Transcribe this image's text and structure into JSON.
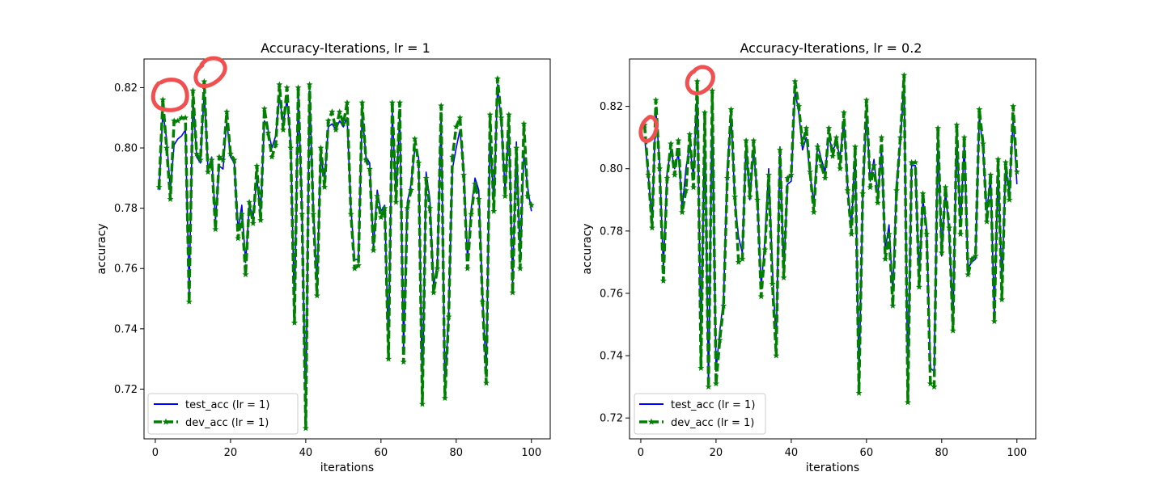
{
  "figure": {
    "background": "#ffffff"
  },
  "chart_data": [
    {
      "type": "line",
      "title": "Accuracy-Iterations, lr = 1",
      "xlabel": "iterations",
      "ylabel": "accuracy",
      "xlim": [
        -3,
        105
      ],
      "ylim": [
        0.7035,
        0.8295
      ],
      "xticks": [
        0,
        20,
        40,
        60,
        80,
        100
      ],
      "xtick_labels": [
        "0",
        "20",
        "40",
        "60",
        "80",
        "100"
      ],
      "yticks": [
        0.72,
        0.74,
        0.76,
        0.78,
        0.8,
        0.82
      ],
      "ytick_labels": [
        "0.72",
        "0.74",
        "0.76",
        "0.78",
        "0.80",
        "0.82"
      ],
      "grid": false,
      "legend_position": "lower left",
      "series": [
        {
          "name": "test_acc (lr = 1)",
          "color": "#0000ff",
          "style": "solid",
          "marker": "none",
          "x": [
            1,
            2,
            3,
            4,
            5,
            6,
            7,
            8,
            9,
            10,
            11,
            12,
            13,
            14,
            15,
            16,
            17,
            18,
            19,
            20,
            21,
            22,
            23,
            24,
            25,
            26,
            27,
            28,
            29,
            30,
            31,
            32,
            33,
            34,
            35,
            36,
            37,
            38,
            39,
            40,
            41,
            42,
            43,
            44,
            45,
            46,
            47,
            48,
            49,
            50,
            51,
            52,
            53,
            54,
            55,
            56,
            57,
            58,
            59,
            60,
            61,
            62,
            63,
            64,
            65,
            66,
            67,
            68,
            69,
            70,
            71,
            72,
            73,
            74,
            75,
            76,
            77,
            78,
            79,
            80,
            81,
            82,
            83,
            84,
            85,
            86,
            87,
            88,
            89,
            90,
            91,
            92,
            93,
            94,
            95,
            96,
            97,
            98,
            99,
            100
          ],
          "values": [
            0.786,
            0.812,
            0.803,
            0.786,
            0.801,
            0.803,
            0.804,
            0.806,
            0.752,
            0.817,
            0.797,
            0.795,
            0.819,
            0.793,
            0.797,
            0.776,
            0.794,
            0.793,
            0.809,
            0.797,
            0.795,
            0.773,
            0.781,
            0.762,
            0.781,
            0.777,
            0.79,
            0.778,
            0.809,
            0.806,
            0.8,
            0.804,
            0.817,
            0.808,
            0.816,
            0.802,
            0.745,
            0.818,
            0.78,
            0.712,
            0.819,
            0.781,
            0.754,
            0.798,
            0.789,
            0.807,
            0.808,
            0.806,
            0.809,
            0.807,
            0.81,
            0.78,
            0.763,
            0.763,
            0.812,
            0.797,
            0.795,
            0.767,
            0.786,
            0.779,
            0.781,
            0.733,
            0.812,
            0.784,
            0.811,
            0.733,
            0.782,
            0.788,
            0.8,
            0.797,
            0.717,
            0.792,
            0.783,
            0.754,
            0.762,
            0.811,
            0.72,
            0.745,
            0.793,
            0.8,
            0.806,
            0.793,
            0.763,
            0.78,
            0.79,
            0.786,
            0.751,
            0.725,
            0.805,
            0.781,
            0.821,
            0.808,
            0.786,
            0.807,
            0.755,
            0.802,
            0.763,
            0.798,
            0.787,
            0.779
          ]
        },
        {
          "name": "dev_acc (lr = 1)",
          "color": "#008000",
          "style": "dashed",
          "marker": "star",
          "x": [
            1,
            2,
            3,
            4,
            5,
            6,
            7,
            8,
            9,
            10,
            11,
            12,
            13,
            14,
            15,
            16,
            17,
            18,
            19,
            20,
            21,
            22,
            23,
            24,
            25,
            26,
            27,
            28,
            29,
            30,
            31,
            32,
            33,
            34,
            35,
            36,
            37,
            38,
            39,
            40,
            41,
            42,
            43,
            44,
            45,
            46,
            47,
            48,
            49,
            50,
            51,
            52,
            53,
            54,
            55,
            56,
            57,
            58,
            59,
            60,
            61,
            62,
            63,
            64,
            65,
            66,
            67,
            68,
            69,
            70,
            71,
            72,
            73,
            74,
            75,
            76,
            77,
            78,
            79,
            80,
            81,
            82,
            83,
            84,
            85,
            86,
            87,
            88,
            89,
            90,
            91,
            92,
            93,
            94,
            95,
            96,
            97,
            98,
            99,
            100
          ],
          "values": [
            0.787,
            0.816,
            0.8,
            0.783,
            0.809,
            0.809,
            0.81,
            0.81,
            0.749,
            0.819,
            0.798,
            0.796,
            0.822,
            0.792,
            0.796,
            0.773,
            0.797,
            0.796,
            0.812,
            0.798,
            0.796,
            0.77,
            0.778,
            0.758,
            0.782,
            0.775,
            0.794,
            0.776,
            0.813,
            0.805,
            0.797,
            0.801,
            0.821,
            0.806,
            0.82,
            0.8,
            0.742,
            0.82,
            0.778,
            0.707,
            0.821,
            0.778,
            0.751,
            0.8,
            0.787,
            0.809,
            0.812,
            0.806,
            0.812,
            0.808,
            0.815,
            0.778,
            0.76,
            0.761,
            0.815,
            0.796,
            0.793,
            0.766,
            0.784,
            0.777,
            0.78,
            0.73,
            0.815,
            0.782,
            0.815,
            0.729,
            0.78,
            0.786,
            0.803,
            0.795,
            0.715,
            0.79,
            0.78,
            0.752,
            0.76,
            0.814,
            0.717,
            0.744,
            0.797,
            0.807,
            0.81,
            0.791,
            0.76,
            0.778,
            0.788,
            0.783,
            0.749,
            0.722,
            0.811,
            0.779,
            0.823,
            0.81,
            0.784,
            0.811,
            0.752,
            0.8,
            0.76,
            0.808,
            0.784,
            0.781
          ]
        }
      ]
    },
    {
      "type": "line",
      "title": "Accuracy-Iterations, lr = 0.2",
      "xlabel": "iterations",
      "ylabel": "accuracy",
      "xlim": [
        -3,
        105
      ],
      "ylim": [
        0.7133,
        0.8352
      ],
      "xticks": [
        0,
        20,
        40,
        60,
        80,
        100
      ],
      "xtick_labels": [
        "0",
        "20",
        "40",
        "60",
        "80",
        "100"
      ],
      "yticks": [
        0.72,
        0.74,
        0.76,
        0.78,
        0.8,
        0.82
      ],
      "ytick_labels": [
        "0.72",
        "0.74",
        "0.76",
        "0.78",
        "0.80",
        "0.82"
      ],
      "grid": false,
      "legend_position": "lower left",
      "series": [
        {
          "name": "test_acc (lr = 1)",
          "color": "#0000ff",
          "style": "solid",
          "marker": "none",
          "x": [
            1,
            2,
            3,
            4,
            5,
            6,
            7,
            8,
            9,
            10,
            11,
            12,
            13,
            14,
            15,
            16,
            17,
            18,
            19,
            20,
            21,
            22,
            23,
            24,
            25,
            26,
            27,
            28,
            29,
            30,
            31,
            32,
            33,
            34,
            35,
            36,
            37,
            38,
            39,
            40,
            41,
            42,
            43,
            44,
            45,
            46,
            47,
            48,
            49,
            50,
            51,
            52,
            53,
            54,
            55,
            56,
            57,
            58,
            59,
            60,
            61,
            62,
            63,
            64,
            65,
            66,
            67,
            68,
            69,
            70,
            71,
            72,
            73,
            74,
            75,
            76,
            77,
            78,
            79,
            80,
            81,
            82,
            83,
            84,
            85,
            86,
            87,
            88,
            89,
            90,
            91,
            92,
            93,
            94,
            95,
            96,
            97,
            98,
            99,
            100
          ],
          "values": [
            0.81,
            0.798,
            0.783,
            0.819,
            0.802,
            0.768,
            0.799,
            0.806,
            0.8,
            0.805,
            0.787,
            0.8,
            0.808,
            0.797,
            0.826,
            0.742,
            0.815,
            0.73,
            0.821,
            0.735,
            0.748,
            0.758,
            0.8,
            0.817,
            0.79,
            0.778,
            0.773,
            0.808,
            0.79,
            0.806,
            0.791,
            0.762,
            0.777,
            0.8,
            0.768,
            0.744,
            0.807,
            0.767,
            0.795,
            0.796,
            0.825,
            0.818,
            0.806,
            0.81,
            0.798,
            0.789,
            0.808,
            0.803,
            0.799,
            0.81,
            0.806,
            0.808,
            0.804,
            0.815,
            0.794,
            0.781,
            0.806,
            0.731,
            0.79,
            0.818,
            0.796,
            0.803,
            0.791,
            0.806,
            0.774,
            0.782,
            0.76,
            0.795,
            0.808,
            0.828,
            0.73,
            0.801,
            0.801,
            0.765,
            0.79,
            0.781,
            0.736,
            0.735,
            0.811,
            0.772,
            0.793,
            0.779,
            0.751,
            0.811,
            0.782,
            0.808,
            0.768,
            0.77,
            0.771,
            0.817,
            0.806,
            0.786,
            0.797,
            0.753,
            0.801,
            0.762,
            0.801,
            0.792,
            0.816,
            0.795
          ]
        },
        {
          "name": "dev_acc (lr = 1)",
          "color": "#008000",
          "style": "dashed",
          "marker": "star",
          "x": [
            1,
            2,
            3,
            4,
            5,
            6,
            7,
            8,
            9,
            10,
            11,
            12,
            13,
            14,
            15,
            16,
            17,
            18,
            19,
            20,
            21,
            22,
            23,
            24,
            25,
            26,
            27,
            28,
            29,
            30,
            31,
            32,
            33,
            34,
            35,
            36,
            37,
            38,
            39,
            40,
            41,
            42,
            43,
            44,
            45,
            46,
            47,
            48,
            49,
            50,
            51,
            52,
            53,
            54,
            55,
            56,
            57,
            58,
            59,
            60,
            61,
            62,
            63,
            64,
            65,
            66,
            67,
            68,
            69,
            70,
            71,
            72,
            73,
            74,
            75,
            76,
            77,
            78,
            79,
            80,
            81,
            82,
            83,
            84,
            85,
            86,
            87,
            88,
            89,
            90,
            91,
            92,
            93,
            94,
            95,
            96,
            97,
            98,
            99,
            100
          ],
          "values": [
            0.814,
            0.798,
            0.781,
            0.822,
            0.8,
            0.764,
            0.797,
            0.808,
            0.798,
            0.809,
            0.786,
            0.793,
            0.811,
            0.794,
            0.828,
            0.736,
            0.818,
            0.73,
            0.825,
            0.731,
            0.745,
            0.756,
            0.797,
            0.819,
            0.791,
            0.77,
            0.771,
            0.809,
            0.791,
            0.809,
            0.79,
            0.759,
            0.774,
            0.798,
            0.763,
            0.74,
            0.806,
            0.765,
            0.797,
            0.798,
            0.828,
            0.82,
            0.808,
            0.813,
            0.799,
            0.786,
            0.807,
            0.801,
            0.797,
            0.813,
            0.804,
            0.81,
            0.8,
            0.818,
            0.793,
            0.779,
            0.807,
            0.728,
            0.792,
            0.822,
            0.794,
            0.801,
            0.789,
            0.81,
            0.771,
            0.779,
            0.756,
            0.793,
            0.81,
            0.83,
            0.725,
            0.802,
            0.802,
            0.762,
            0.792,
            0.779,
            0.731,
            0.73,
            0.813,
            0.773,
            0.794,
            0.781,
            0.748,
            0.814,
            0.779,
            0.81,
            0.766,
            0.771,
            0.772,
            0.819,
            0.808,
            0.783,
            0.798,
            0.751,
            0.803,
            0.758,
            0.802,
            0.79,
            0.82,
            0.799
          ]
        }
      ]
    }
  ],
  "annotation_color": "#f05050"
}
